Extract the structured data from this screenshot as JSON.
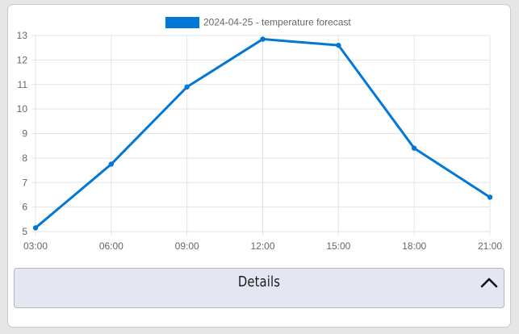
{
  "chart_data": {
    "type": "line",
    "x": [
      "03:00",
      "06:00",
      "09:00",
      "12:00",
      "15:00",
      "18:00",
      "21:00"
    ],
    "series": [
      {
        "name": "2024-04-25 - temperature forecast",
        "values": [
          5.15,
          7.75,
          10.9,
          12.85,
          12.6,
          8.4,
          6.4
        ],
        "color": "#0277d6"
      }
    ],
    "ylim": [
      5,
      13
    ],
    "yticks": [
      "5",
      "6",
      "7",
      "8",
      "9",
      "10",
      "11",
      "12",
      "13"
    ],
    "grid": true,
    "legend": "top-center"
  },
  "details": {
    "label": "Details",
    "icon": "chevron-up-icon"
  },
  "colors": {
    "line": "#0277d6",
    "grid": "#e3e3e3",
    "panel": "#e4e6f1"
  }
}
